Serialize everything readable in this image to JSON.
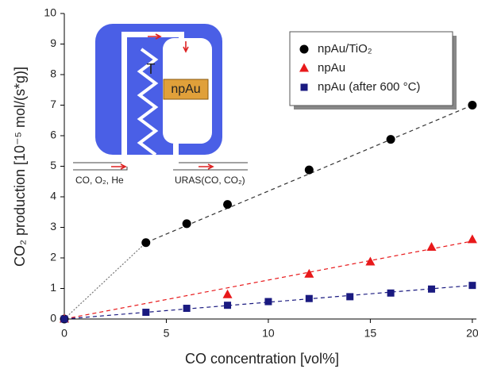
{
  "chart_data": {
    "type": "scatter",
    "xlabel": "CO concentration [vol%]",
    "ylabel": "CO₂ production [10⁻⁵ mol/(s*g)]",
    "xlim": [
      0,
      20.2
    ],
    "xticks": [
      0,
      5,
      10,
      15,
      20
    ],
    "ylim": [
      0,
      10
    ],
    "yticks": [
      0,
      1,
      2,
      3,
      4,
      5,
      6,
      7,
      8,
      9,
      10
    ],
    "legend": "top-right",
    "series": [
      {
        "name": "npAu/TiO₂",
        "color": "#000000",
        "marker": "circle",
        "x": [
          0,
          4,
          6,
          8,
          12,
          16,
          20
        ],
        "values": [
          0,
          2.5,
          3.12,
          3.75,
          4.88,
          5.88,
          7.0
        ]
      },
      {
        "name": "npAu",
        "color": "#e8191b",
        "marker": "triangle",
        "x": [
          0,
          8,
          12,
          15,
          18,
          20
        ],
        "values": [
          0,
          0.8,
          1.47,
          1.87,
          2.35,
          2.6
        ]
      },
      {
        "name": "npAu (after 600 °C)",
        "color": "#1a1a80",
        "marker": "square",
        "x": [
          0,
          4,
          6,
          8,
          10,
          12,
          14,
          16,
          18,
          20
        ],
        "values": [
          0,
          0.22,
          0.35,
          0.45,
          0.57,
          0.67,
          0.73,
          0.85,
          0.98,
          1.1
        ]
      }
    ],
    "fit_lines": [
      {
        "color": "#333333",
        "style": "dashed",
        "x": [
          4,
          20
        ],
        "values": [
          2.5,
          7.0
        ]
      },
      {
        "color": "#777777",
        "style": "dotted",
        "x": [
          0,
          4
        ],
        "values": [
          0,
          2.5
        ]
      },
      {
        "color": "#e8191b",
        "style": "dashed",
        "x": [
          0,
          20
        ],
        "values": [
          0,
          2.55
        ]
      },
      {
        "color": "#1a1a80",
        "style": "dashed",
        "x": [
          0,
          20
        ],
        "values": [
          0,
          1.1
        ]
      }
    ],
    "inset": {
      "temperature": "T",
      "sample": "npAu",
      "inlet": "CO, O₂, He",
      "outlet": "URAS(CO, CO₂)"
    }
  }
}
